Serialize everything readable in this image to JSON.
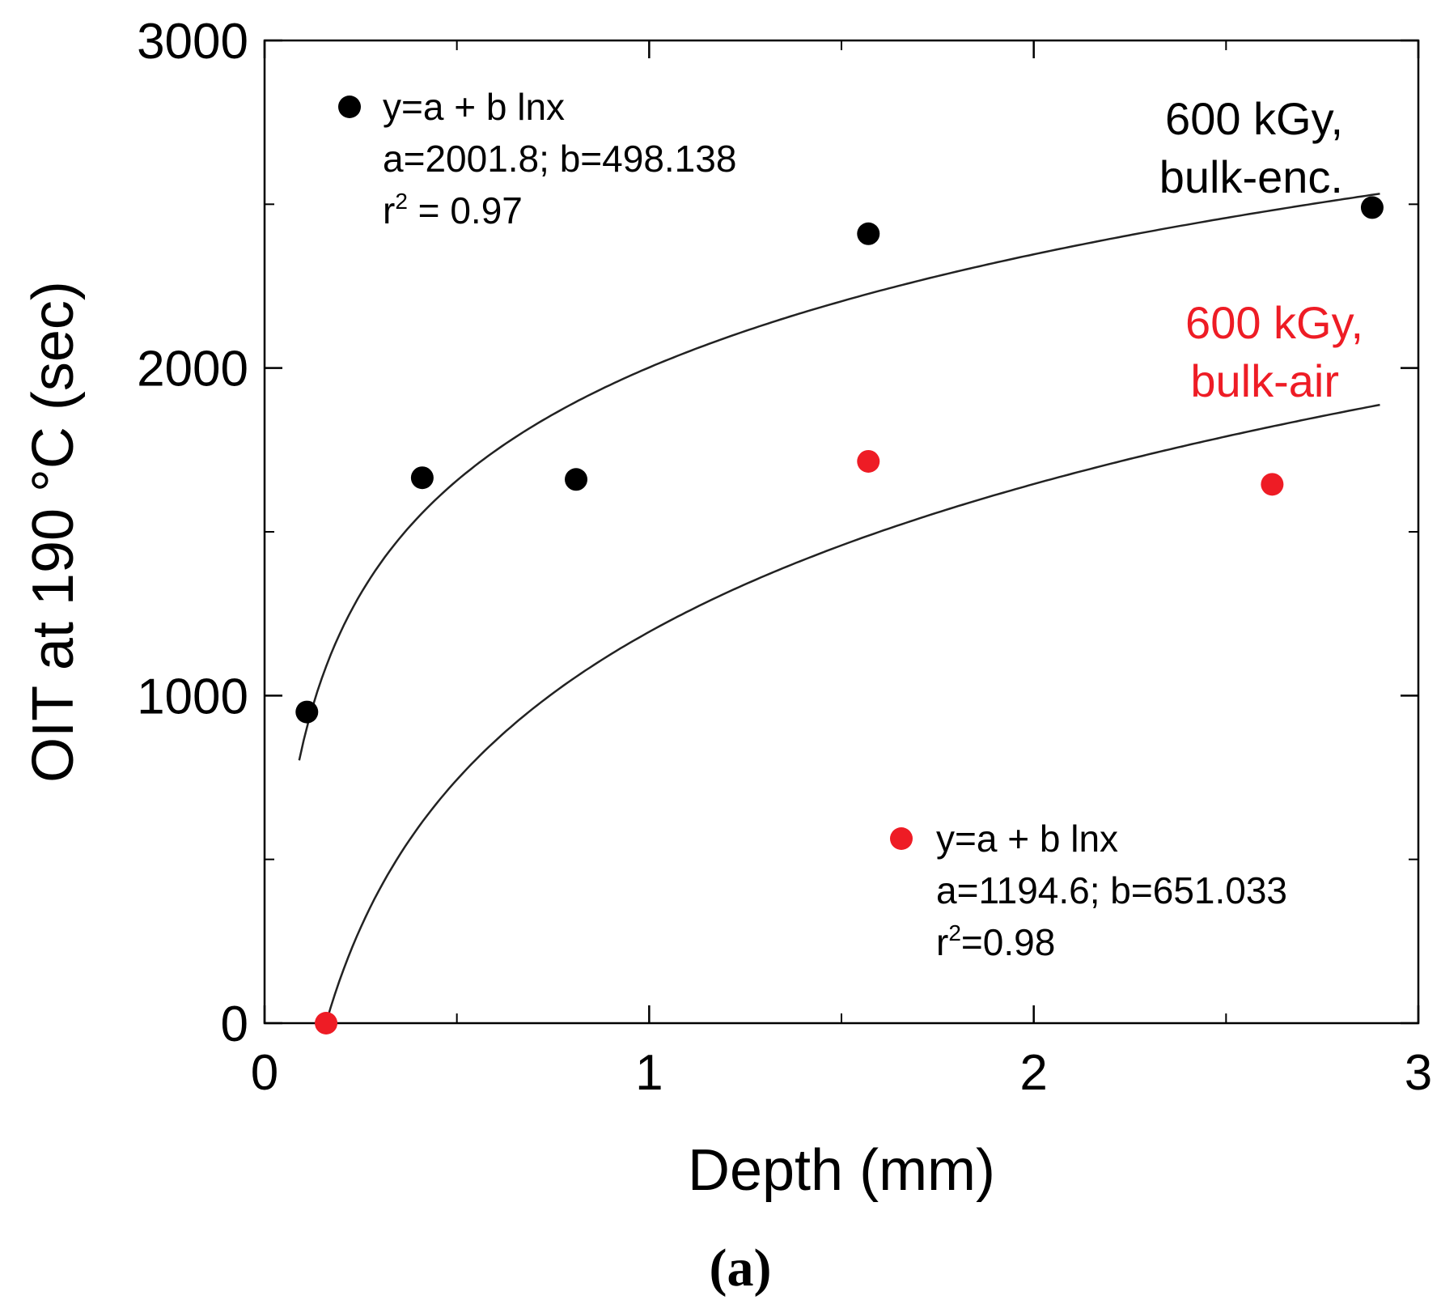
{
  "chart_data": {
    "type": "scatter",
    "title": "",
    "xlabel": "Depth (mm)",
    "ylabel": "OIT at 190 °C (sec)",
    "xlim": [
      0,
      3
    ],
    "ylim": [
      0,
      3000
    ],
    "xticks": [
      0,
      1,
      2,
      3
    ],
    "yticks": [
      0,
      1000,
      2000,
      3000
    ],
    "xtick_labels": [
      "0",
      "1",
      "2",
      "3"
    ],
    "ytick_labels": [
      "0",
      "1000",
      "2000",
      "3000"
    ],
    "grid": false,
    "panel_label": "(a)",
    "series": [
      {
        "name": "600 kGy, bulk-enc.",
        "label_line1": "600 kGy,",
        "label_line2": "bulk-enc.",
        "color": "#000000",
        "points": [
          {
            "x": 0.11,
            "y": 950
          },
          {
            "x": 0.41,
            "y": 1665
          },
          {
            "x": 0.81,
            "y": 1660
          },
          {
            "x": 1.57,
            "y": 2410
          },
          {
            "x": 2.88,
            "y": 2490
          }
        ],
        "fit": {
          "equation": "y=a + b lnx",
          "params": "a=2001.8; b=498.138",
          "r2_prefix": "r",
          "r2_sup": "2",
          "r2_value": " = 0.97",
          "a": 2001.8,
          "b": 498.138,
          "x_range": [
            0.09,
            2.9
          ]
        }
      },
      {
        "name": "600 kGy, bulk-air",
        "label_line1": "600 kGy,",
        "label_line2": "bulk-air",
        "color": "#ee1c25",
        "points": [
          {
            "x": 0.16,
            "y": 0
          },
          {
            "x": 1.57,
            "y": 1715
          },
          {
            "x": 2.62,
            "y": 1645
          }
        ],
        "fit": {
          "equation": "y=a + b lnx",
          "params": "a=1194.6; b=651.033",
          "r2_prefix": "r",
          "r2_sup": "2",
          "r2_value": "=0.98",
          "a": 1194.6,
          "b": 651.033,
          "x_range": [
            0.16,
            2.9
          ]
        }
      }
    ]
  }
}
